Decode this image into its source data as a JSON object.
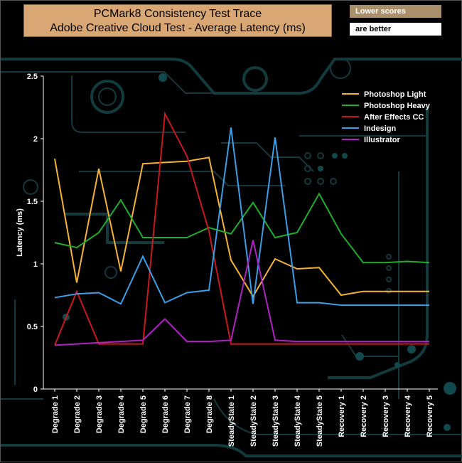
{
  "header": {
    "title_line1": "PCMark8 Consistency Test Trace",
    "title_line2": "Adobe Creative Cloud Test -  Average Latency (ms)",
    "note_top": "Lower scores",
    "note_bottom": "are better"
  },
  "chart_data": {
    "type": "line",
    "ylabel": "Latency (ms)",
    "xlabel": "",
    "ylim": [
      0,
      2.5
    ],
    "yticks": [
      "0",
      "0.5",
      "1",
      "1.5",
      "2",
      "2.5"
    ],
    "grid": false,
    "legend_position": "top-right",
    "categories": [
      "Degrade 1",
      "Degrade 2",
      "Degrade 3",
      "Degrade 4",
      "Degrade 5",
      "Degrade 6",
      "Degrade 7",
      "Degrade 8",
      "SteadyState 1",
      "SteadyState 2",
      "SteadyState 3",
      "SteadyState 4",
      "SteadyState 5",
      "Recovery 1",
      "Recovery 2",
      "Recovery 3",
      "Recovery 4",
      "Recovery 5"
    ],
    "series": [
      {
        "name": "Photoshop Light",
        "color": "#f5b335",
        "values": [
          1.84,
          0.85,
          1.76,
          0.94,
          1.8,
          1.81,
          1.82,
          1.85,
          1.03,
          0.74,
          1.04,
          0.96,
          0.97,
          0.75,
          0.78,
          0.78,
          0.78,
          0.78
        ]
      },
      {
        "name": " Photoshop Heavy",
        "color": "#1fae2b",
        "values": [
          1.17,
          1.13,
          1.25,
          1.51,
          1.21,
          1.21,
          1.21,
          1.29,
          1.24,
          1.49,
          1.21,
          1.25,
          1.56,
          1.24,
          1.01,
          1.01,
          1.02,
          1.01
        ]
      },
      {
        "name": "After Effects CC",
        "color": "#c8191f",
        "values": [
          0.35,
          0.78,
          0.36,
          0.36,
          0.36,
          2.2,
          1.86,
          1.26,
          0.36,
          0.36,
          0.36,
          0.36,
          0.36,
          0.36,
          0.36,
          0.36,
          0.36,
          0.36
        ]
      },
      {
        "name": "Indesign",
        "color": "#3a9fe6",
        "values": [
          0.73,
          0.76,
          0.77,
          0.68,
          1.06,
          0.69,
          0.77,
          0.79,
          2.09,
          0.68,
          2.01,
          0.69,
          0.69,
          0.67,
          0.67,
          0.67,
          0.67,
          0.67
        ]
      },
      {
        "name": "Illustrator",
        "color": "#b021c4",
        "values": [
          0.35,
          0.36,
          0.37,
          0.38,
          0.39,
          0.56,
          0.38,
          0.38,
          0.39,
          1.19,
          0.39,
          0.38,
          0.38,
          0.38,
          0.38,
          0.38,
          0.38,
          0.38
        ]
      }
    ]
  }
}
